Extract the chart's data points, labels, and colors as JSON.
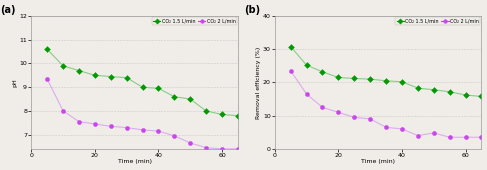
{
  "panel_a": {
    "label": "(a)",
    "xlabel": "Time (min)",
    "ylabel": "pH",
    "ylim": [
      6.4,
      12
    ],
    "xlim": [
      0,
      65
    ],
    "yticks": [
      7,
      8,
      9,
      10,
      11,
      12
    ],
    "xticks": [
      0,
      20,
      40,
      60
    ],
    "series": [
      {
        "label": "CO₂ 1.5 L/min",
        "color": "#009900",
        "linecolor": "#88cc88",
        "marker": "D",
        "x": [
          5,
          10,
          15,
          20,
          25,
          30,
          35,
          40,
          45,
          50,
          55,
          60,
          65
        ],
        "y": [
          10.6,
          9.9,
          9.7,
          9.5,
          9.45,
          9.4,
          9.0,
          8.95,
          8.6,
          8.5,
          8.0,
          7.85,
          7.8
        ]
      },
      {
        "label": "CO₂ 2 L/min",
        "color": "#cc44ee",
        "linecolor": "#ddaaee",
        "marker": "o",
        "x": [
          5,
          10,
          15,
          20,
          25,
          30,
          35,
          40,
          45,
          50,
          55,
          60,
          65
        ],
        "y": [
          9.35,
          8.0,
          7.55,
          7.45,
          7.35,
          7.3,
          7.2,
          7.15,
          6.95,
          6.65,
          6.45,
          6.4,
          6.4
        ]
      }
    ]
  },
  "panel_b": {
    "label": "(b)",
    "xlabel": "Time (min)",
    "ylabel": "Removal efficiency (%)",
    "ylim": [
      0,
      40
    ],
    "xlim": [
      0,
      65
    ],
    "yticks": [
      0,
      10,
      20,
      30,
      40
    ],
    "xticks": [
      0,
      20,
      40,
      60
    ],
    "series": [
      {
        "label": "CO₂ 1.5 L/min",
        "color": "#009900",
        "linecolor": "#88cc88",
        "marker": "D",
        "x": [
          5,
          10,
          15,
          20,
          25,
          30,
          35,
          40,
          45,
          50,
          55,
          60,
          65
        ],
        "y": [
          30.8,
          25.2,
          23.2,
          21.5,
          21.2,
          21.0,
          20.5,
          20.2,
          18.3,
          17.8,
          17.2,
          16.2,
          15.8
        ]
      },
      {
        "label": "CO₂ 2 L/min",
        "color": "#cc44ee",
        "linecolor": "#ddaaee",
        "marker": "o",
        "x": [
          5,
          10,
          15,
          20,
          25,
          30,
          35,
          40,
          45,
          50,
          55,
          60,
          65
        ],
        "y": [
          23.5,
          16.5,
          12.5,
          11.0,
          9.5,
          9.0,
          6.5,
          6.0,
          4.0,
          4.8,
          3.5,
          3.5,
          3.5
        ]
      }
    ]
  },
  "background": "#f0ede8",
  "plot_bg": "#f0ede8",
  "grid_color": "#bbbbbb",
  "grid_linestyle": "--"
}
